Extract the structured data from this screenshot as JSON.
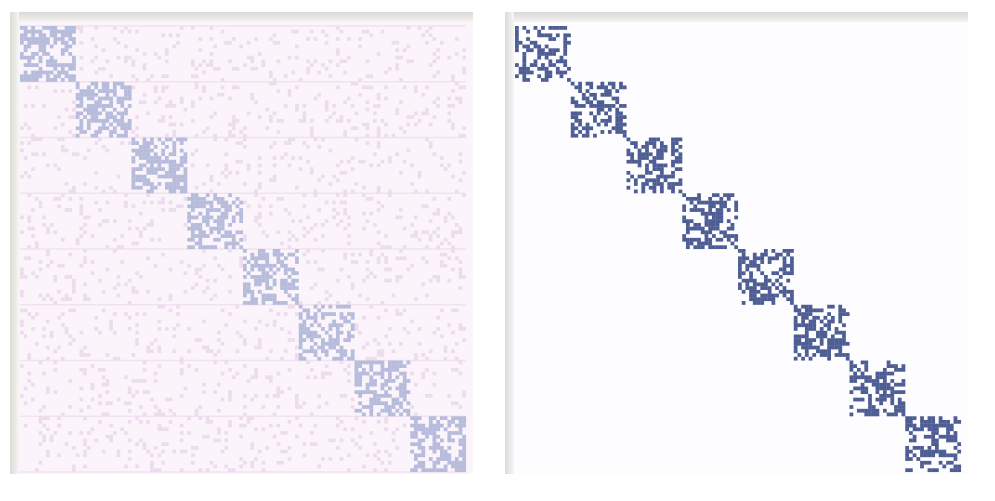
{
  "chart_data": [
    {
      "type": "heatmap",
      "n": 120,
      "blocks": 8,
      "block_size": 15,
      "in_block_density": 0.55,
      "background_density": 0.12,
      "colors": {
        "background": "#fbf5fb",
        "grid": "#f1e2f1",
        "noise": "#eddcee",
        "cell": "#b7bcdc"
      }
    },
    {
      "type": "heatmap",
      "n": 120,
      "blocks": 8,
      "block_size": 15,
      "in_block_density": 0.5,
      "background_density": 0,
      "colors": {
        "background": "#fdfdff",
        "grid": "#fdfdff",
        "noise": "#fdfdff",
        "cell": "#4e5e94"
      }
    }
  ]
}
